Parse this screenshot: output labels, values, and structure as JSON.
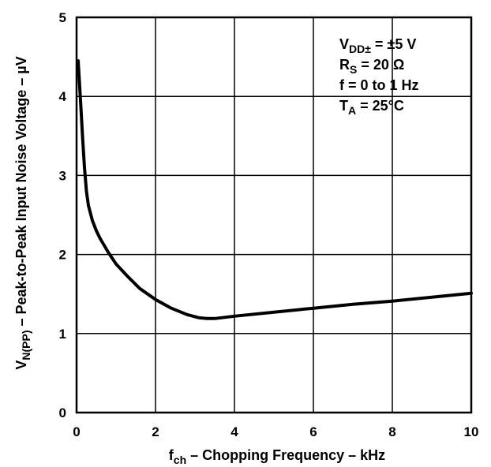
{
  "chart_data": {
    "type": "line",
    "title": "",
    "xlabel": {
      "main": "f",
      "sub": "ch",
      "rest": " – Chopping Frequency – kHz"
    },
    "ylabel": {
      "main": "V",
      "sub": "N(PP)",
      "rest": " – Peak-to-Peak Input Noise Voltage – ",
      "unit": "µV"
    },
    "xlim": [
      0,
      10
    ],
    "ylim": [
      0,
      5
    ],
    "x_ticks": [
      "0",
      "2",
      "4",
      "6",
      "8",
      "10"
    ],
    "y_ticks": [
      "0",
      "1",
      "2",
      "3",
      "4",
      "5"
    ],
    "grid": true,
    "series": [
      {
        "x": [
          0.04,
          0.1,
          0.15,
          0.2,
          0.25,
          0.3,
          0.4,
          0.5,
          0.6,
          0.8,
          1.0,
          1.3,
          1.6,
          2.0,
          2.4,
          2.8,
          3.1,
          3.3,
          3.5,
          4.0,
          5.0,
          6.0,
          7.0,
          8.0,
          9.0,
          10.0
        ],
        "y": [
          4.45,
          3.95,
          3.5,
          3.1,
          2.8,
          2.62,
          2.43,
          2.3,
          2.2,
          2.03,
          1.88,
          1.72,
          1.57,
          1.43,
          1.32,
          1.24,
          1.2,
          1.19,
          1.19,
          1.22,
          1.27,
          1.32,
          1.37,
          1.41,
          1.46,
          1.51
        ]
      }
    ],
    "annotations": [
      {
        "main": "V",
        "sub": "DD±",
        "rest": " = ±5 V"
      },
      {
        "main": "R",
        "sub": "S",
        "rest": " = 20 Ω"
      },
      {
        "main": "f = 0 to 1 Hz",
        "sub": "",
        "rest": ""
      },
      {
        "main": "T",
        "sub": "A",
        "rest": " = 25°C"
      }
    ]
  }
}
